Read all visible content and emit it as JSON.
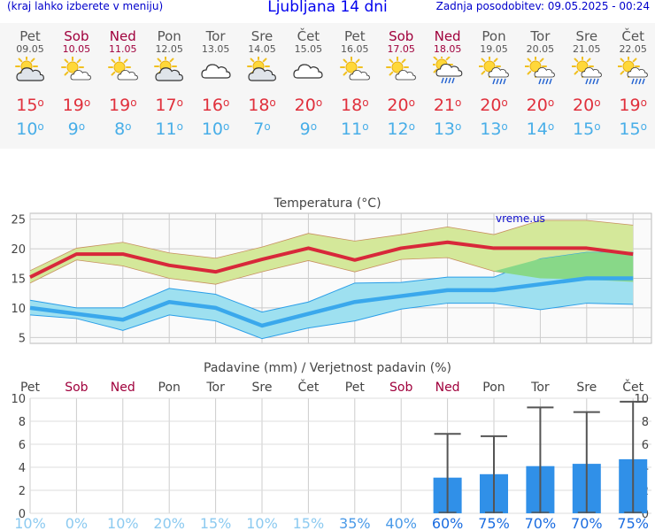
{
  "header": {
    "left_note": "(kraj lahko izberete v meniju)",
    "title": "Ljubljana 14 dni",
    "updated": "Zadnja posodobitev: 09.05.2025 - 00:24"
  },
  "days": [
    {
      "name": "Pet",
      "date": "09.05",
      "weekend": false,
      "icon": "partly-cloudy-sun-icon",
      "tmax": "15",
      "tmin": "10"
    },
    {
      "name": "Sob",
      "date": "10.05",
      "weekend": true,
      "icon": "sun-cloud-icon",
      "tmax": "19",
      "tmin": "9"
    },
    {
      "name": "Ned",
      "date": "11.05",
      "weekend": true,
      "icon": "sun-cloud-icon",
      "tmax": "19",
      "tmin": "8"
    },
    {
      "name": "Pon",
      "date": "12.05",
      "weekend": false,
      "icon": "partly-cloudy-sun-icon",
      "tmax": "17",
      "tmin": "11"
    },
    {
      "name": "Tor",
      "date": "13.05",
      "weekend": false,
      "icon": "cloudy-icon",
      "tmax": "16",
      "tmin": "10"
    },
    {
      "name": "Sre",
      "date": "14.05",
      "weekend": false,
      "icon": "partly-cloudy-sun-icon",
      "tmax": "18",
      "tmin": "7"
    },
    {
      "name": "Čet",
      "date": "15.05",
      "weekend": false,
      "icon": "cloudy-icon",
      "tmax": "20",
      "tmin": "9"
    },
    {
      "name": "Pet",
      "date": "16.05",
      "weekend": false,
      "icon": "sun-cloud-icon",
      "tmax": "18",
      "tmin": "11"
    },
    {
      "name": "Sob",
      "date": "17.05",
      "weekend": true,
      "icon": "sun-cloud-icon",
      "tmax": "20",
      "tmin": "12"
    },
    {
      "name": "Ned",
      "date": "18.05",
      "weekend": true,
      "icon": "rain-shower-icon",
      "tmax": "21",
      "tmin": "13"
    },
    {
      "name": "Pon",
      "date": "19.05",
      "weekend": false,
      "icon": "sun-rain-icon",
      "tmax": "20",
      "tmin": "13"
    },
    {
      "name": "Tor",
      "date": "20.05",
      "weekend": false,
      "icon": "sun-rain-icon",
      "tmax": "20",
      "tmin": "14"
    },
    {
      "name": "Sre",
      "date": "21.05",
      "weekend": false,
      "icon": "sun-rain-icon",
      "tmax": "20",
      "tmin": "15"
    },
    {
      "name": "Čet",
      "date": "22.05",
      "weekend": false,
      "icon": "sun-rain-icon",
      "tmax": "19",
      "tmin": "15"
    }
  ],
  "colors": {
    "weekday": "#555555",
    "weekend": "#a0003c",
    "max": "#e0303c",
    "min": "#48aee8",
    "bar": "#3090e8",
    "green_band": "#d4e89a",
    "blue_band": "#9ee0f0"
  },
  "chart_data": [
    {
      "type": "line",
      "title": "Temperatura (°C)",
      "watermark": "vreme.us",
      "categories": [
        "09.05",
        "10.05",
        "11.05",
        "12.05",
        "13.05",
        "14.05",
        "15.05",
        "16.05",
        "17.05",
        "18.05",
        "19.05",
        "20.05",
        "21.05",
        "22.05"
      ],
      "ylim": [
        4,
        26
      ],
      "yticks": [
        5,
        10,
        15,
        20,
        25
      ],
      "grid": true,
      "series": [
        {
          "values": [
            15.2,
            19.1,
            19.1,
            17.2,
            16.1,
            18.2,
            20.1,
            18.1,
            20.1,
            21.1,
            20.1,
            20.1,
            20.1,
            19.1
          ]
        },
        {
          "values": [
            16.3,
            20.1,
            21.1,
            19.3,
            18.4,
            20.3,
            22.6,
            21.3,
            22.4,
            23.7,
            22.4,
            24.8,
            24.8,
            24.0
          ]
        },
        {
          "values": [
            14.2,
            18.1,
            17.1,
            15.0,
            14.0,
            16.1,
            18.0,
            16.1,
            18.2,
            18.5,
            16.2,
            15.0,
            14.8,
            14.4
          ]
        },
        {
          "values": [
            10.0,
            9.0,
            8.0,
            11.0,
            10.0,
            7.0,
            9.0,
            11.0,
            12.0,
            13.0,
            13.0,
            14.0,
            15.0,
            15.0
          ]
        },
        {
          "values": [
            11.3,
            10.0,
            10.0,
            13.3,
            12.3,
            9.3,
            11.0,
            14.2,
            14.3,
            15.2,
            15.2,
            18.3,
            19.4,
            19.4
          ]
        },
        {
          "values": [
            8.8,
            8.2,
            6.2,
            8.8,
            7.8,
            4.8,
            6.6,
            7.8,
            9.8,
            10.8,
            10.8,
            9.7,
            10.8,
            10.6
          ]
        }
      ]
    },
    {
      "type": "bar",
      "title": "Padavine (mm) / Verjetnost padavin (%)",
      "categories": [
        "Pet",
        "Sob",
        "Ned",
        "Pon",
        "Tor",
        "Sre",
        "Čet",
        "Pet",
        "Sob",
        "Ned",
        "Pon",
        "Tor",
        "Sre",
        "Čet"
      ],
      "weekend": [
        false,
        true,
        true,
        false,
        false,
        false,
        false,
        false,
        true,
        true,
        false,
        false,
        false,
        false
      ],
      "ylim": [
        0,
        10
      ],
      "yticks": [
        0,
        2,
        4,
        6,
        8,
        10
      ],
      "values": [
        0,
        0,
        0,
        0,
        0,
        0,
        0,
        0,
        0,
        3.1,
        3.4,
        4.1,
        4.3,
        4.7
      ],
      "error_max": [
        0,
        0,
        0,
        0,
        0,
        0,
        0,
        0,
        0,
        6.9,
        6.7,
        9.2,
        8.8,
        9.7
      ],
      "probability": [
        "10%",
        "0%",
        "10%",
        "20%",
        "15%",
        "10%",
        "15%",
        "35%",
        "40%",
        "60%",
        "75%",
        "70%",
        "70%",
        "75%"
      ]
    }
  ]
}
